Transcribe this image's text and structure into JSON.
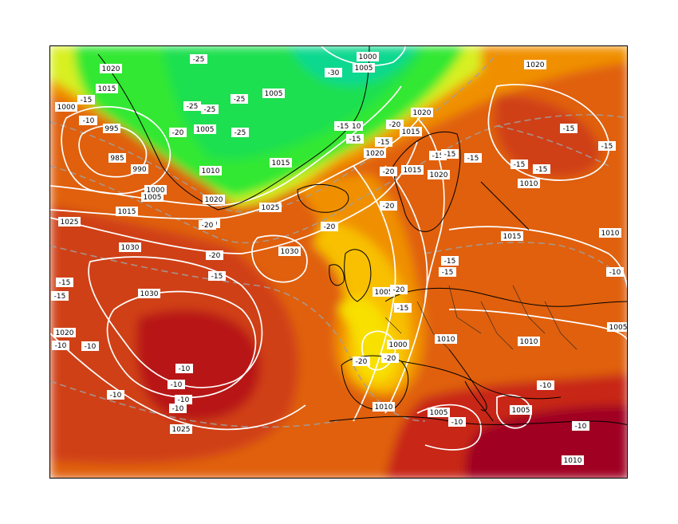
{
  "map": {
    "title": "",
    "colors": {
      "very_cold": "#0fd890",
      "cold": "#1fe050",
      "cool": "#30e830",
      "transition": "#d8f020",
      "mild": "#f8e000",
      "warm_light": "#f8c000",
      "warm": "#f09000",
      "hot": "#e06010",
      "hotter": "#d04018",
      "hottest": "#b81818",
      "extreme": "#a00020"
    },
    "isobar_labels": [
      {
        "id": "isobar-1000-a",
        "text": "1000"
      },
      {
        "id": "isobar-1005-a",
        "text": "1005"
      },
      {
        "id": "isobar-1020-a",
        "text": "1020"
      },
      {
        "id": "isobar-1015-a",
        "text": "1015"
      },
      {
        "id": "isobar-1000-b",
        "text": "1000"
      },
      {
        "id": "isobar-995",
        "text": "995"
      },
      {
        "id": "isobar-985",
        "text": "985"
      },
      {
        "id": "isobar-990",
        "text": "990"
      },
      {
        "id": "isobar-1000-c",
        "text": "1000"
      },
      {
        "id": "isobar-1005-b",
        "text": "1005"
      },
      {
        "id": "isobar-1015-b",
        "text": "1015"
      },
      {
        "id": "isobar-1025-a",
        "text": "1025"
      },
      {
        "id": "isobar-1030-a",
        "text": "1030"
      },
      {
        "id": "isobar-1030-b",
        "text": "1030"
      },
      {
        "id": "isobar-1020-b",
        "text": "1020"
      },
      {
        "id": "isobar-1025-b",
        "text": "1025"
      },
      {
        "id": "isobar-1005-c",
        "text": "1005"
      },
      {
        "id": "isobar-1005-d",
        "text": "1005"
      },
      {
        "id": "isobar-1010-a",
        "text": "1010"
      },
      {
        "id": "isobar-1020-c",
        "text": "1020"
      },
      {
        "id": "isobar-1010-b",
        "text": "1010"
      },
      {
        "id": "isobar-1015-c",
        "text": "1015"
      },
      {
        "id": "isobar-1025-c",
        "text": "1025"
      },
      {
        "id": "isobar-1030-c",
        "text": "1030"
      },
      {
        "id": "isobar-1020-d",
        "text": "1020"
      },
      {
        "id": "isobar-1015-d",
        "text": "1015"
      },
      {
        "id": "isobar-1015-e",
        "text": "1015"
      },
      {
        "id": "isobar-1020-e",
        "text": "1020"
      },
      {
        "id": "isobar-1020-f",
        "text": "1020"
      },
      {
        "id": "isobar-1020-g",
        "text": "1020"
      },
      {
        "id": "isobar-1015-f",
        "text": "1015"
      },
      {
        "id": "isobar-1010-c",
        "text": "1010"
      },
      {
        "id": "isobar-1010-d",
        "text": "1010"
      },
      {
        "id": "isobar-1005-e",
        "text": "1005"
      },
      {
        "id": "isobar-1000-d",
        "text": "1000"
      },
      {
        "id": "isobar-1010-e",
        "text": "1010"
      },
      {
        "id": "isobar-1010-f",
        "text": "1010"
      },
      {
        "id": "isobar-1005-f",
        "text": "1005"
      },
      {
        "id": "isobar-1005-g",
        "text": "1005"
      },
      {
        "id": "isobar-1010-g",
        "text": "1010"
      },
      {
        "id": "isobar-1010-h",
        "text": "1010"
      },
      {
        "id": "isobar-1010-i",
        "text": "1010"
      },
      {
        "id": "isobar-1005-h",
        "text": "1005"
      }
    ],
    "temp_labels": [
      {
        "id": "temp-m25-a",
        "text": "-25"
      },
      {
        "id": "temp-m30",
        "text": "-30"
      },
      {
        "id": "temp-m25-b",
        "text": "-25"
      },
      {
        "id": "temp-m25-c",
        "text": "-25"
      },
      {
        "id": "temp-m25-d",
        "text": "-25"
      },
      {
        "id": "temp-m20-a",
        "text": "-20"
      },
      {
        "id": "temp-m25-e",
        "text": "-25"
      },
      {
        "id": "temp-m15-a",
        "text": "-15"
      },
      {
        "id": "temp-m15-b",
        "text": "-15"
      },
      {
        "id": "temp-m20-b",
        "text": "-20"
      },
      {
        "id": "temp-m20-c",
        "text": "-20"
      },
      {
        "id": "temp-m15-c",
        "text": "-15"
      },
      {
        "id": "temp-m20-d",
        "text": "-20"
      },
      {
        "id": "temp-m15-d",
        "text": "-15"
      },
      {
        "id": "temp-m15-e",
        "text": "-15"
      },
      {
        "id": "temp-m15-f",
        "text": "-15"
      },
      {
        "id": "temp-m15-g",
        "text": "-15"
      },
      {
        "id": "temp-m15-h",
        "text": "-15"
      },
      {
        "id": "temp-m15-i",
        "text": "-15"
      },
      {
        "id": "temp-m20-e",
        "text": "-20"
      },
      {
        "id": "temp-m20-f",
        "text": "-20"
      },
      {
        "id": "temp-m20-g",
        "text": "-20"
      },
      {
        "id": "temp-m20-h",
        "text": "-20"
      },
      {
        "id": "temp-m20-i",
        "text": "-20"
      },
      {
        "id": "temp-m15-j",
        "text": "-15"
      },
      {
        "id": "temp-m15-k",
        "text": "-15"
      },
      {
        "id": "temp-m15-l",
        "text": "-15"
      },
      {
        "id": "temp-m15-m",
        "text": "-15"
      },
      {
        "id": "temp-m15-n",
        "text": "-15"
      },
      {
        "id": "temp-m10-a",
        "text": "-10"
      },
      {
        "id": "temp-m10-b",
        "text": "-10"
      },
      {
        "id": "temp-m10-c",
        "text": "-10"
      },
      {
        "id": "temp-m10-d",
        "text": "-10"
      },
      {
        "id": "temp-m10-e",
        "text": "-10"
      },
      {
        "id": "temp-m10-f",
        "text": "-10"
      },
      {
        "id": "temp-m20-j",
        "text": "-20"
      },
      {
        "id": "temp-m20-k",
        "text": "-20"
      },
      {
        "id": "temp-m10-g",
        "text": "-10"
      },
      {
        "id": "temp-m10-h",
        "text": "-10"
      },
      {
        "id": "temp-m10-i",
        "text": "-10"
      },
      {
        "id": "temp-m10-j",
        "text": "-10"
      },
      {
        "id": "temp-m10-k",
        "text": "-10"
      },
      {
        "id": "temp-m15-o",
        "text": "-15"
      },
      {
        "id": "temp-m15-p",
        "text": "-15"
      },
      {
        "id": "temp-m15-q",
        "text": "-15"
      },
      {
        "id": "temp-m15-r",
        "text": "-15"
      },
      {
        "id": "temp-m10-l",
        "text": "-10"
      }
    ]
  }
}
